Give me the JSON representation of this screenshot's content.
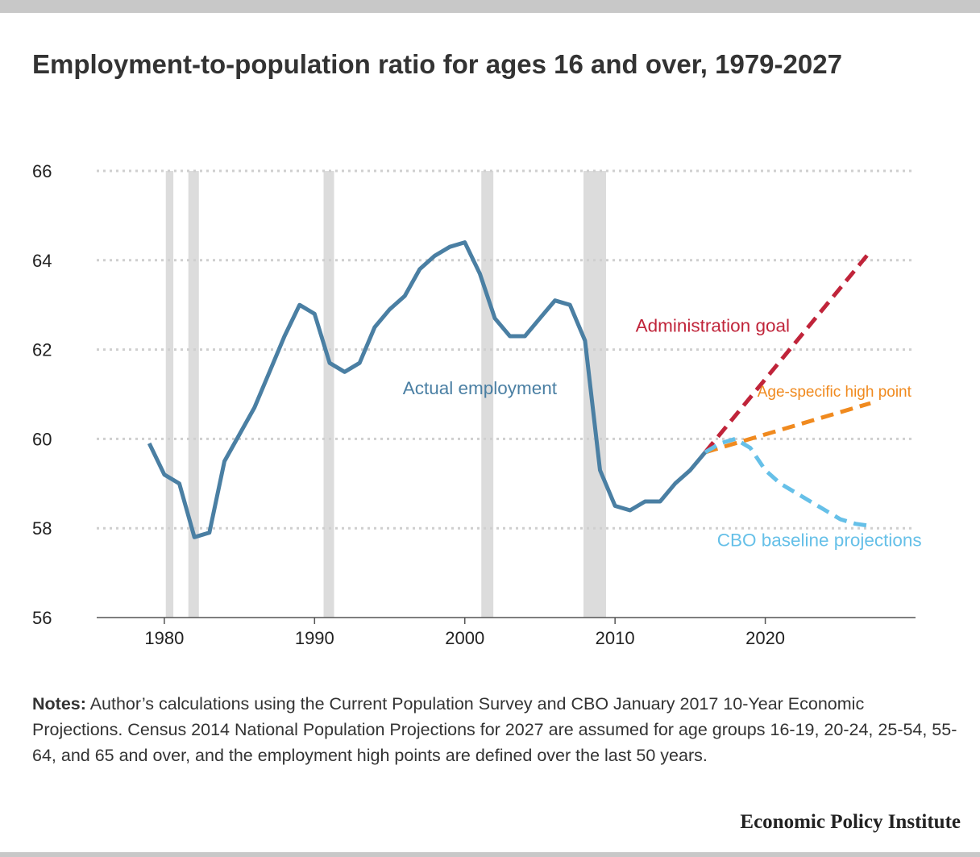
{
  "title": "Employment-to-population ratio for ages 16 and over, 1979-2027",
  "notes": {
    "label": "Notes:",
    "text": " Author’s calculations using the Current Population Survey and CBO January 2017 10-Year Economic Projections. Census 2014 National Population Projections for 2027 are assumed for age groups 16-19, 20-24, 25-54, 55-64, and 65 and over, and the employment high points are defined over the last 50 years."
  },
  "source": "Economic Policy Institute",
  "chart_data": {
    "type": "line",
    "title": "Employment-to-population ratio for ages 16 and over, 1979-2027",
    "xlabel": "",
    "ylabel": "",
    "xlim": [
      1975.5,
      2030
    ],
    "ylim": [
      56,
      66
    ],
    "x_ticks": [
      1980,
      1990,
      2000,
      2010,
      2020
    ],
    "y_ticks": [
      56,
      58,
      60,
      62,
      64,
      66
    ],
    "grid": true,
    "legend": "inline labels",
    "recessions": [
      [
        1980.1,
        1980.6
      ],
      [
        1981.6,
        1982.3
      ],
      [
        1990.6,
        1991.3
      ],
      [
        2001.1,
        2001.9
      ],
      [
        2007.9,
        2009.4
      ]
    ],
    "series": [
      {
        "name": "Actual employment",
        "color": "#4a7fa3",
        "style": "solid",
        "label_pos": [
          2001,
          61.0
        ],
        "x": [
          1979,
          1980,
          1981,
          1982,
          1983,
          1984,
          1985,
          1986,
          1987,
          1988,
          1989,
          1990,
          1991,
          1992,
          1993,
          1994,
          1995,
          1996,
          1997,
          1998,
          1999,
          2000,
          2001,
          2002,
          2003,
          2004,
          2005,
          2006,
          2007,
          2008,
          2009,
          2010,
          2011,
          2012,
          2013,
          2014,
          2015,
          2016
        ],
        "y": [
          59.9,
          59.2,
          59.0,
          57.8,
          57.9,
          59.5,
          60.1,
          60.7,
          61.5,
          62.3,
          63.0,
          62.8,
          61.7,
          61.5,
          61.7,
          62.5,
          62.9,
          63.2,
          63.8,
          64.1,
          64.3,
          64.4,
          63.7,
          62.7,
          62.3,
          62.3,
          62.7,
          63.1,
          63.0,
          62.2,
          59.3,
          58.5,
          58.4,
          58.6,
          58.6,
          59.0,
          59.3,
          59.7
        ]
      },
      {
        "name": "Administration goal",
        "color": "#c0243a",
        "style": "dashed",
        "label_pos": [
          2016.5,
          62.4
        ],
        "x": [
          2016,
          2027
        ],
        "y": [
          59.7,
          64.2
        ]
      },
      {
        "name": "Age-specific high point",
        "color": "#f08a1f",
        "style": "dashed",
        "label_pos": [
          2024.6,
          60.95
        ],
        "x": [
          2016,
          2027
        ],
        "y": [
          59.7,
          60.8
        ]
      },
      {
        "name": "CBO baseline projections",
        "color": "#66c0e8",
        "style": "dashed",
        "label_pos": [
          2023.6,
          57.6
        ],
        "x": [
          2016,
          2017,
          2018,
          2019,
          2020,
          2021,
          2022,
          2023,
          2024,
          2025,
          2026,
          2027
        ],
        "y": [
          59.7,
          59.9,
          60.0,
          59.8,
          59.3,
          59.0,
          58.8,
          58.6,
          58.4,
          58.2,
          58.1,
          58.05
        ]
      }
    ]
  }
}
